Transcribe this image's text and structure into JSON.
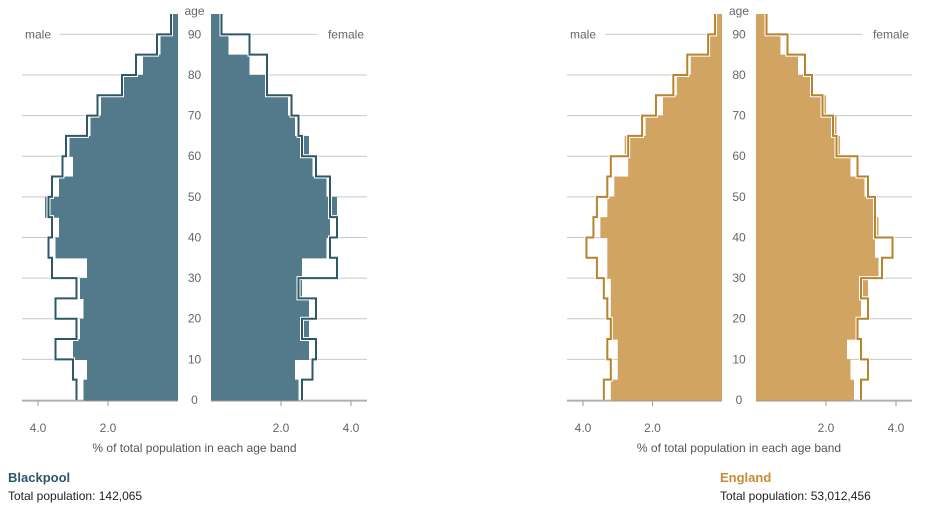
{
  "chart_data": [
    {
      "type": "population-pyramid",
      "area": "Blackpool",
      "total_label": "Total population: 142,065",
      "xlabel": "% of total population in each age band",
      "age_label": "age",
      "male_label": "male",
      "female_label": "female",
      "xlim": [
        0,
        4.0
      ],
      "x_ticks": [
        "4.0",
        "2.0",
        "2.0",
        "4.0"
      ],
      "age_ticks": [
        0,
        10,
        20,
        30,
        40,
        50,
        60,
        70,
        80,
        90
      ],
      "color": "#527a8a",
      "outline_color": "#2e5868",
      "age_bands": [
        "0-4",
        "5-9",
        "10-14",
        "15-19",
        "20-24",
        "25-29",
        "30-34",
        "35-39",
        "40-44",
        "45-49",
        "50-54",
        "55-59",
        "60-64",
        "65-69",
        "70-74",
        "75-79",
        "80-84",
        "85-89",
        "90+"
      ],
      "male": [
        2.7,
        2.6,
        3.0,
        2.8,
        2.7,
        2.8,
        2.6,
        3.5,
        3.4,
        3.8,
        3.4,
        3.0,
        3.1,
        2.5,
        2.2,
        1.6,
        1.0,
        0.5,
        0.15
      ],
      "female": [
        2.5,
        2.4,
        2.8,
        2.8,
        2.8,
        2.6,
        2.6,
        3.3,
        3.4,
        3.6,
        3.3,
        2.9,
        2.8,
        2.4,
        2.2,
        1.6,
        1.1,
        0.5,
        0.3
      ],
      "male_outline": [
        2.9,
        3.0,
        3.5,
        2.9,
        3.5,
        2.9,
        3.6,
        3.7,
        3.6,
        3.7,
        3.6,
        3.3,
        3.2,
        2.6,
        2.3,
        1.6,
        1.2,
        0.6,
        0.2
      ],
      "female_outline": [
        2.6,
        2.9,
        3.0,
        2.6,
        3.0,
        2.5,
        3.6,
        3.4,
        3.6,
        3.4,
        3.4,
        3.0,
        2.6,
        2.5,
        2.3,
        1.6,
        1.6,
        1.1,
        0.3
      ]
    },
    {
      "type": "population-pyramid",
      "area": "England",
      "total_label": "Total population: 53,012,456",
      "xlabel": "% of total population in each age band",
      "age_label": "age",
      "male_label": "male",
      "female_label": "female",
      "xlim": [
        0,
        4.0
      ],
      "x_ticks": [
        "4.0",
        "2.0",
        "2.0",
        "4.0"
      ],
      "age_ticks": [
        0,
        10,
        20,
        30,
        40,
        50,
        60,
        70,
        80,
        90
      ],
      "color": "#d2a462",
      "outline_color": "#b8832e",
      "age_bands": [
        "0-4",
        "5-9",
        "10-14",
        "15-19",
        "20-24",
        "25-29",
        "30-34",
        "35-39",
        "40-44",
        "45-49",
        "50-54",
        "55-59",
        "60-64",
        "65-69",
        "70-74",
        "75-79",
        "80-84",
        "85-89",
        "90+"
      ],
      "male": [
        3.2,
        3.0,
        3.0,
        3.2,
        3.2,
        3.2,
        3.3,
        3.3,
        3.5,
        3.3,
        3.1,
        2.7,
        2.8,
        2.2,
        1.7,
        1.3,
        0.9,
        0.4,
        0.15
      ],
      "female": [
        2.8,
        2.7,
        2.6,
        2.9,
        3.0,
        3.2,
        3.5,
        3.4,
        3.5,
        3.4,
        3.1,
        2.7,
        2.4,
        2.3,
        2.0,
        1.6,
        1.2,
        0.7,
        0.3
      ],
      "male_outline": [
        3.4,
        3.2,
        3.3,
        3.2,
        3.3,
        3.4,
        3.6,
        3.9,
        3.7,
        3.6,
        3.3,
        3.2,
        2.7,
        2.3,
        1.9,
        1.4,
        1.0,
        0.4,
        0.2
      ],
      "female_outline": [
        3.0,
        3.2,
        3.0,
        2.9,
        3.2,
        3.0,
        3.6,
        3.9,
        3.4,
        3.4,
        3.2,
        2.9,
        2.3,
        2.2,
        1.9,
        1.6,
        1.4,
        0.9,
        0.3
      ]
    }
  ]
}
